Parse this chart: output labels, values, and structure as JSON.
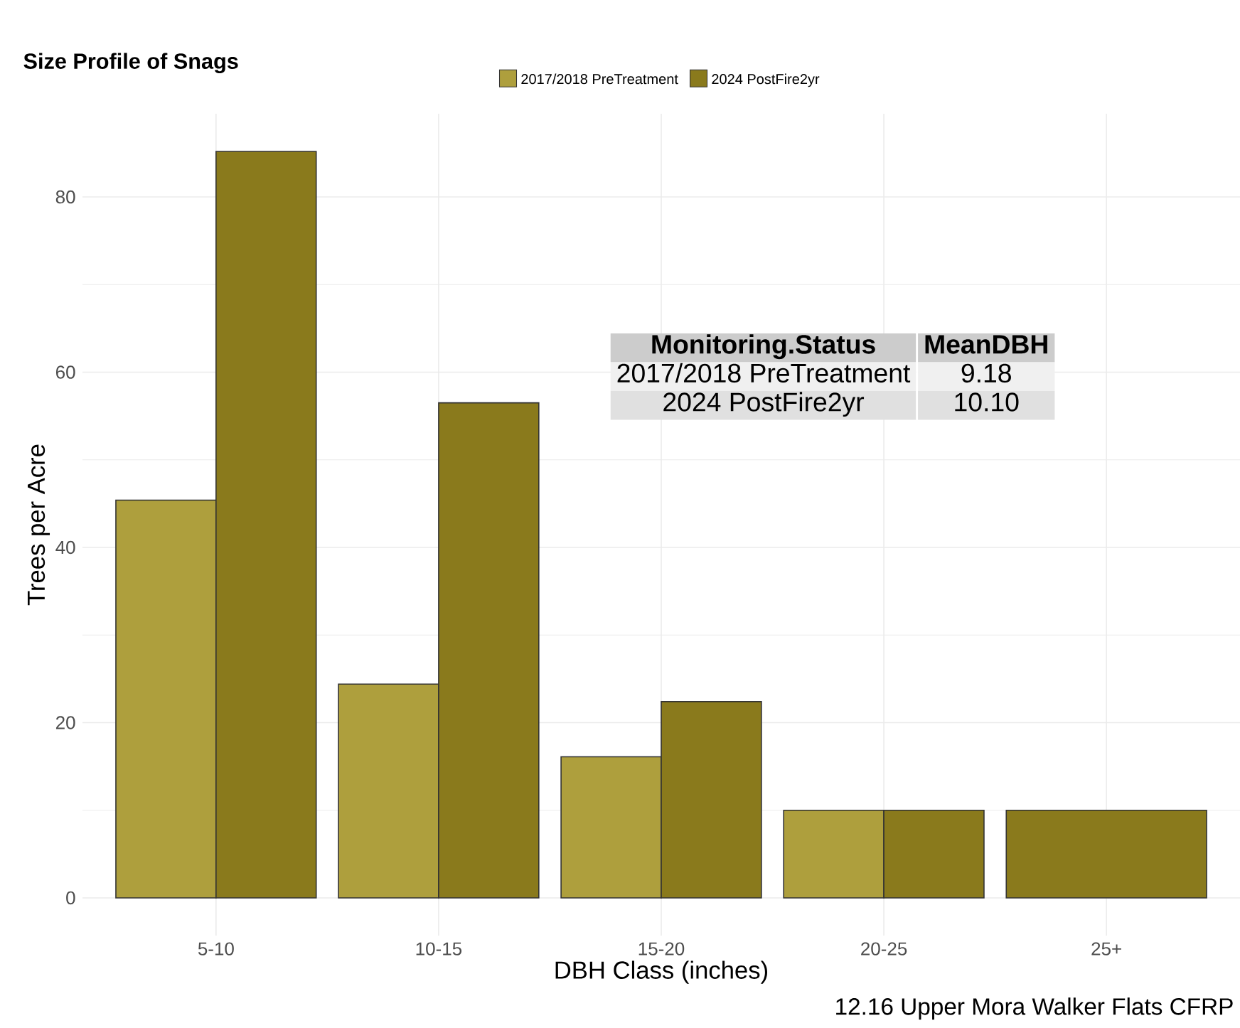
{
  "chart_data": {
    "type": "bar",
    "title": "Size Profile of Snags",
    "xlabel": "DBH Class (inches)",
    "ylabel": "Trees per Acre",
    "categories": [
      "5-10",
      "10-15",
      "15-20",
      "20-25",
      "25+"
    ],
    "series": [
      {
        "name": "2017/2018 PreTreatment",
        "color": "#ae9f3d",
        "values": [
          45.4,
          24.4,
          16.1,
          10.0,
          null
        ]
      },
      {
        "name": "2024 PostFire2yr",
        "color": "#8a7a1c",
        "values": [
          85.2,
          56.5,
          22.4,
          10.0,
          10.0
        ]
      }
    ],
    "ylim": [
      -4.3,
      89.5
    ],
    "yticks": [
      0,
      20,
      40,
      60,
      80
    ],
    "grid": true,
    "legend": "top",
    "annotations": [
      "Monitoring.Status",
      "MeanDBH",
      "2017/2018 PreTreatment",
      "9.18",
      "2024 PostFire2yr",
      "10.10",
      "12.16 Upper Mora Walker Flats CFRP"
    ]
  }
}
